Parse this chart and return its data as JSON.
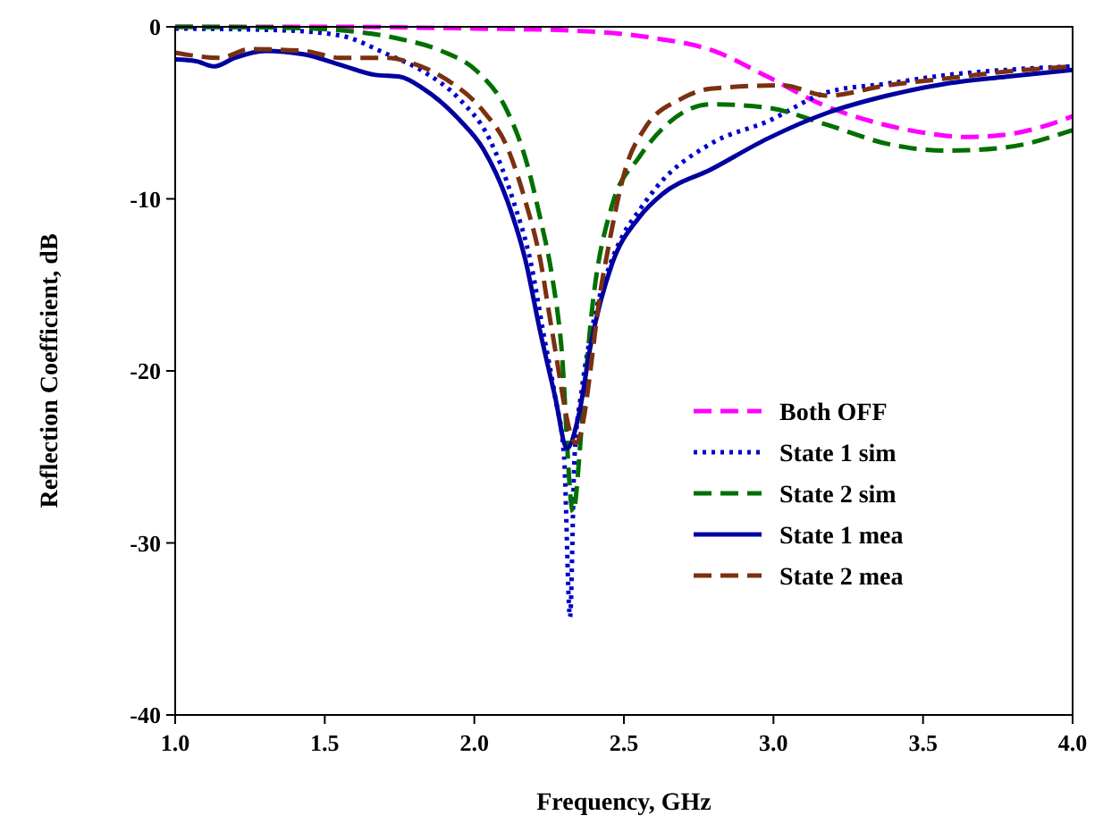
{
  "chart_data": {
    "type": "line",
    "xlabel": "Frequency, GHz",
    "ylabel": "Reflection Coefficient, dB",
    "xlim": [
      1,
      4
    ],
    "ylim": [
      -40,
      0
    ],
    "xticks": [
      {
        "value": 1,
        "label": "1.0"
      },
      {
        "value": 1.5,
        "label": "1.5"
      },
      {
        "value": 2,
        "label": "2.0"
      },
      {
        "value": 2.5,
        "label": "2.5"
      },
      {
        "value": 3,
        "label": "3.0"
      },
      {
        "value": 3.5,
        "label": "3.5"
      },
      {
        "value": 4,
        "label": "4.0"
      }
    ],
    "yticks": [
      0,
      -10,
      -20,
      -30,
      -40
    ],
    "grid": false,
    "legend": "right",
    "series": [
      {
        "name": "Both OFF",
        "color": "#ff00ff",
        "line_style": "dashed",
        "x": [
          1,
          1.5,
          2,
          2.3,
          2.58,
          2.8,
          2.98,
          3.16,
          3.35,
          3.52,
          3.64,
          3.76,
          3.9,
          4
        ],
        "values": [
          0,
          0,
          -0.1,
          -0.2,
          -0.6,
          -1.4,
          -2.9,
          -4.5,
          -5.6,
          -6.2,
          -6.4,
          -6.3,
          -5.8,
          -5.2
        ]
      },
      {
        "name": "State 1 sim",
        "color": "#0000cc",
        "line_style": "dotted",
        "x": [
          1,
          1.35,
          1.55,
          1.71,
          1.83,
          1.95,
          2.05,
          2.13,
          2.19,
          2.23,
          2.27,
          2.3,
          2.32,
          2.335,
          2.36,
          2.4,
          2.45,
          2.5,
          2.55,
          2.61,
          2.79,
          2.98,
          3.18,
          3.38,
          3.58,
          3.78,
          4
        ],
        "values": [
          -0.1,
          -0.2,
          -0.5,
          -1.6,
          -2.6,
          -4.2,
          -6.5,
          -10.1,
          -13.8,
          -17.7,
          -21.5,
          -25,
          -34.3,
          -25,
          -21,
          -17,
          -14,
          -12,
          -10.7,
          -9.3,
          -6.8,
          -5.5,
          -3.8,
          -3.3,
          -2.8,
          -2.5,
          -2.3
        ]
      },
      {
        "name": "State 2 sim",
        "color": "#007000",
        "line_style": "dashed",
        "x": [
          1,
          1.35,
          1.55,
          1.75,
          1.89,
          2.01,
          2.11,
          2.17,
          2.22,
          2.26,
          2.29,
          2.33,
          2.36,
          2.39,
          2.46,
          2.55,
          2.63,
          2.79,
          2.98,
          3.18,
          3.38,
          3.58,
          3.78,
          4
        ],
        "values": [
          0,
          -0.05,
          -0.2,
          -0.7,
          -1.4,
          -2.6,
          -4.9,
          -7.6,
          -11.1,
          -14.5,
          -18.4,
          -28.2,
          -23,
          -17,
          -10.4,
          -7.6,
          -5.9,
          -4.5,
          -4.7,
          -5.7,
          -6.8,
          -7.2,
          -7,
          -6
        ]
      },
      {
        "name": "State 1 mea",
        "color": "#0000a0",
        "line_style": "solid",
        "x": [
          1,
          1.07,
          1.13,
          1.2,
          1.3,
          1.43,
          1.55,
          1.67,
          1.75,
          1.83,
          1.95,
          2.03,
          2.11,
          2.17,
          2.22,
          2.27,
          2.31,
          2.35,
          2.39,
          2.46,
          2.55,
          2.63,
          2.79,
          2.98,
          3.18,
          3.38,
          3.58,
          3.78,
          4
        ],
        "values": [
          -1.9,
          -2,
          -2.3,
          -1.8,
          -1.4,
          -1.6,
          -2.2,
          -2.8,
          -2.9,
          -3.6,
          -5.4,
          -7.1,
          -10.1,
          -13.5,
          -17.7,
          -21.5,
          -24.5,
          -22.5,
          -18.4,
          -13.8,
          -11.1,
          -9.7,
          -8.3,
          -6.5,
          -5,
          -4,
          -3.3,
          -2.9,
          -2.5
        ]
      },
      {
        "name": "State 2 mea",
        "color": "#7b3010",
        "line_style": "dashed",
        "x": [
          1,
          1.15,
          1.25,
          1.43,
          1.55,
          1.71,
          1.79,
          1.91,
          2.03,
          2.11,
          2.17,
          2.22,
          2.26,
          2.34,
          2.43,
          2.51,
          2.57,
          2.69,
          2.79,
          3.03,
          3.18,
          3.38,
          3.58,
          3.78,
          4
        ],
        "values": [
          -1.5,
          -1.8,
          -1.3,
          -1.4,
          -1.8,
          -1.8,
          -2.1,
          -3.1,
          -4.9,
          -7,
          -10.1,
          -13.5,
          -17.7,
          -24.2,
          -14.5,
          -8,
          -5.9,
          -4.2,
          -3.6,
          -3.4,
          -4,
          -3.4,
          -3,
          -2.6,
          -2.3
        ]
      }
    ]
  }
}
